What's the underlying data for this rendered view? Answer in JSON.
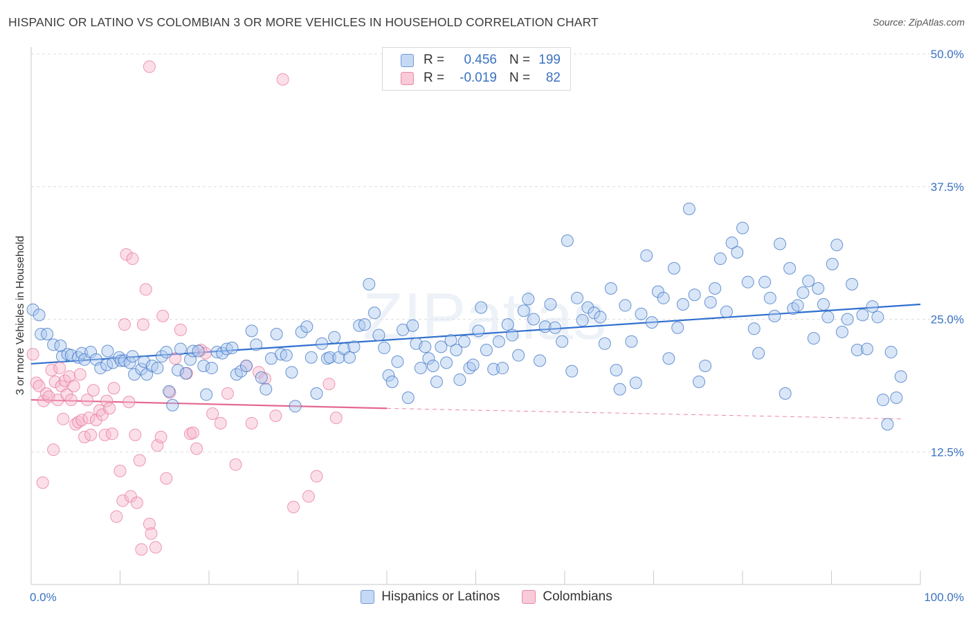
{
  "title": "HISPANIC OR LATINO VS COLOMBIAN 3 OR MORE VEHICLES IN HOUSEHOLD CORRELATION CHART",
  "source": "Source: ZipAtlas.com",
  "watermark": "ZIPatlas",
  "colors": {
    "blue": "#3a72c2",
    "blue_fill": "#aac8ef",
    "blue_line": "#2f6fcf",
    "pink": "#e8779b",
    "pink_fill": "#f6b7cb",
    "pink_line": "#e4698f",
    "grid": "#dcdcdc",
    "axis_text": "#3a72c2"
  },
  "legend": {
    "rows": [
      {
        "r_label": "R =",
        "r_value": "0.456",
        "n_label": "N =",
        "n_value": "199"
      },
      {
        "r_label": "R =",
        "r_value": "-0.019",
        "n_label": "N =",
        "n_value": "82"
      }
    ]
  },
  "bottom_legend": [
    "Hispanics or Latinos",
    "Colombians"
  ],
  "chart_data": {
    "type": "scatter",
    "ylabel": "3 or more Vehicles in Household",
    "xlim": [
      0,
      100
    ],
    "ylim": [
      0,
      50
    ],
    "x_tick_labels": [
      "0.0%",
      "100.0%"
    ],
    "y_ticks": [
      12.5,
      25.0,
      37.5,
      50.0
    ],
    "y_tick_labels": [
      "12.5%",
      "25.0%",
      "37.5%",
      "50.0%"
    ],
    "grid": true,
    "legend_position": "top-center",
    "series": [
      {
        "name": "Hispanics or Latinos",
        "r": 0.456,
        "n": 199,
        "trend": {
          "x": [
            0,
            100
          ],
          "y": [
            20.8,
            26.4
          ]
        },
        "points": [
          [
            0.2,
            25.9
          ],
          [
            0.9,
            25.4
          ],
          [
            1.1,
            23.6
          ],
          [
            1.8,
            23.6
          ],
          [
            2.5,
            22.6
          ],
          [
            3.3,
            22.5
          ],
          [
            3.5,
            21.5
          ],
          [
            4.1,
            21.7
          ],
          [
            4.5,
            21.6
          ],
          [
            5.3,
            21.4
          ],
          [
            5.7,
            21.8
          ],
          [
            6.0,
            21.2
          ],
          [
            6.7,
            21.9
          ],
          [
            7.3,
            21.2
          ],
          [
            7.8,
            20.4
          ],
          [
            8.5,
            20.7
          ],
          [
            8.6,
            22.0
          ],
          [
            9.2,
            20.9
          ],
          [
            9.9,
            21.4
          ],
          [
            10.1,
            21.1
          ],
          [
            10.5,
            21.1
          ],
          [
            11.1,
            20.9
          ],
          [
            11.4,
            21.5
          ],
          [
            11.6,
            19.8
          ],
          [
            12.4,
            20.3
          ],
          [
            12.7,
            21.0
          ],
          [
            13.0,
            19.8
          ],
          [
            13.6,
            20.6
          ],
          [
            14.2,
            20.4
          ],
          [
            14.7,
            21.5
          ],
          [
            15.2,
            21.9
          ],
          [
            15.5,
            18.2
          ],
          [
            15.9,
            16.9
          ],
          [
            16.5,
            20.2
          ],
          [
            16.8,
            22.2
          ],
          [
            17.4,
            19.9
          ],
          [
            17.9,
            21.2
          ],
          [
            18.2,
            22.0
          ],
          [
            18.8,
            22.0
          ],
          [
            19.4,
            20.6
          ],
          [
            19.7,
            17.9
          ],
          [
            20.3,
            20.4
          ],
          [
            20.9,
            21.9
          ],
          [
            21.5,
            21.8
          ],
          [
            22.0,
            22.2
          ],
          [
            22.6,
            22.3
          ],
          [
            23.1,
            19.8
          ],
          [
            23.6,
            20.1
          ],
          [
            24.2,
            20.6
          ],
          [
            24.8,
            23.9
          ],
          [
            25.3,
            22.6
          ],
          [
            25.9,
            19.5
          ],
          [
            26.4,
            18.4
          ],
          [
            27.0,
            21.3
          ],
          [
            27.6,
            23.6
          ],
          [
            28.1,
            21.7
          ],
          [
            28.7,
            21.6
          ],
          [
            29.3,
            20.0
          ],
          [
            29.7,
            16.8
          ],
          [
            30.4,
            23.8
          ],
          [
            31.0,
            24.3
          ],
          [
            31.5,
            21.4
          ],
          [
            32.1,
            18.0
          ],
          [
            32.7,
            22.7
          ],
          [
            33.3,
            21.3
          ],
          [
            33.6,
            21.4
          ],
          [
            34.1,
            23.3
          ],
          [
            34.6,
            21.4
          ],
          [
            35.2,
            22.2
          ],
          [
            35.8,
            21.4
          ],
          [
            36.3,
            22.4
          ],
          [
            36.9,
            24.4
          ],
          [
            37.5,
            24.5
          ],
          [
            38.0,
            28.3
          ],
          [
            38.6,
            25.6
          ],
          [
            39.1,
            23.5
          ],
          [
            39.7,
            22.3
          ],
          [
            40.2,
            19.7
          ],
          [
            40.6,
            19.1
          ],
          [
            41.2,
            21.0
          ],
          [
            41.8,
            24.0
          ],
          [
            42.4,
            17.6
          ],
          [
            42.9,
            24.4
          ],
          [
            43.3,
            22.7
          ],
          [
            43.8,
            20.4
          ],
          [
            44.3,
            22.4
          ],
          [
            44.7,
            21.3
          ],
          [
            45.2,
            20.6
          ],
          [
            45.6,
            19.1
          ],
          [
            46.1,
            22.4
          ],
          [
            46.7,
            20.9
          ],
          [
            47.2,
            23.0
          ],
          [
            47.8,
            22.1
          ],
          [
            48.2,
            19.3
          ],
          [
            48.7,
            22.9
          ],
          [
            49.3,
            20.4
          ],
          [
            49.7,
            20.7
          ],
          [
            50.3,
            23.9
          ],
          [
            50.6,
            26.1
          ],
          [
            51.2,
            22.1
          ],
          [
            52.0,
            20.3
          ],
          [
            52.6,
            22.9
          ],
          [
            53.0,
            20.4
          ],
          [
            53.6,
            24.5
          ],
          [
            54.1,
            23.5
          ],
          [
            54.8,
            21.6
          ],
          [
            55.4,
            25.8
          ],
          [
            55.9,
            26.9
          ],
          [
            56.5,
            25.0
          ],
          [
            57.2,
            21.1
          ],
          [
            57.8,
            24.3
          ],
          [
            58.4,
            26.4
          ],
          [
            58.9,
            24.2
          ],
          [
            59.7,
            22.9
          ],
          [
            60.3,
            32.4
          ],
          [
            60.8,
            20.1
          ],
          [
            61.4,
            27.0
          ],
          [
            62.0,
            24.9
          ],
          [
            62.6,
            26.1
          ],
          [
            63.3,
            25.6
          ],
          [
            64.0,
            25.2
          ],
          [
            64.5,
            22.7
          ],
          [
            65.2,
            27.9
          ],
          [
            65.8,
            20.2
          ],
          [
            66.2,
            18.4
          ],
          [
            66.8,
            26.3
          ],
          [
            67.5,
            22.9
          ],
          [
            68.0,
            19.0
          ],
          [
            68.6,
            25.5
          ],
          [
            69.2,
            31.0
          ],
          [
            69.8,
            24.7
          ],
          [
            70.5,
            27.6
          ],
          [
            71.1,
            27.0
          ],
          [
            71.7,
            21.3
          ],
          [
            72.3,
            29.8
          ],
          [
            72.7,
            24.2
          ],
          [
            73.3,
            26.4
          ],
          [
            74.0,
            35.4
          ],
          [
            74.6,
            27.3
          ],
          [
            75.1,
            19.1
          ],
          [
            75.8,
            20.6
          ],
          [
            76.4,
            26.6
          ],
          [
            76.9,
            27.9
          ],
          [
            77.5,
            30.7
          ],
          [
            78.2,
            25.7
          ],
          [
            78.8,
            32.2
          ],
          [
            79.4,
            31.3
          ],
          [
            80.0,
            33.6
          ],
          [
            80.6,
            28.5
          ],
          [
            81.3,
            24.1
          ],
          [
            81.8,
            21.8
          ],
          [
            82.5,
            28.5
          ],
          [
            83.1,
            27.0
          ],
          [
            83.6,
            25.3
          ],
          [
            84.2,
            32.1
          ],
          [
            84.8,
            18.0
          ],
          [
            85.3,
            29.8
          ],
          [
            85.7,
            26.0
          ],
          [
            86.2,
            26.3
          ],
          [
            86.8,
            27.5
          ],
          [
            87.4,
            28.6
          ],
          [
            88.0,
            23.2
          ],
          [
            88.5,
            27.9
          ],
          [
            89.1,
            26.4
          ],
          [
            89.6,
            25.2
          ],
          [
            90.1,
            30.2
          ],
          [
            90.6,
            32.0
          ],
          [
            91.2,
            23.8
          ],
          [
            91.8,
            25.0
          ],
          [
            92.3,
            28.3
          ],
          [
            92.9,
            22.1
          ],
          [
            93.5,
            25.4
          ],
          [
            94.0,
            22.2
          ],
          [
            94.6,
            26.2
          ],
          [
            95.2,
            25.2
          ],
          [
            95.8,
            17.4
          ],
          [
            96.3,
            15.1
          ],
          [
            96.7,
            21.9
          ],
          [
            97.3,
            17.6
          ],
          [
            97.8,
            19.6
          ]
        ]
      },
      {
        "name": "Colombians",
        "r": -0.019,
        "n": 82,
        "trend": {
          "x": [
            0,
            40
          ],
          "y": [
            17.4,
            16.6
          ]
        },
        "trend_dashed": {
          "x": [
            40,
            98
          ],
          "y": [
            16.6,
            15.6
          ]
        },
        "points": [
          [
            0.2,
            21.7
          ],
          [
            0.6,
            19.0
          ],
          [
            0.9,
            18.7
          ],
          [
            1.3,
            9.6
          ],
          [
            1.4,
            17.3
          ],
          [
            1.7,
            18.0
          ],
          [
            2.0,
            17.7
          ],
          [
            2.3,
            20.2
          ],
          [
            2.5,
            12.7
          ],
          [
            2.7,
            19.1
          ],
          [
            3.0,
            17.4
          ],
          [
            3.2,
            20.4
          ],
          [
            3.4,
            18.7
          ],
          [
            3.6,
            15.6
          ],
          [
            3.8,
            19.2
          ],
          [
            4.0,
            17.9
          ],
          [
            4.3,
            19.6
          ],
          [
            4.5,
            17.4
          ],
          [
            4.8,
            18.7
          ],
          [
            5.0,
            15.1
          ],
          [
            5.3,
            15.3
          ],
          [
            5.5,
            19.8
          ],
          [
            5.7,
            15.5
          ],
          [
            6.0,
            13.9
          ],
          [
            6.3,
            17.4
          ],
          [
            6.5,
            15.7
          ],
          [
            6.7,
            14.1
          ],
          [
            7.0,
            18.3
          ],
          [
            7.3,
            15.5
          ],
          [
            7.7,
            16.4
          ],
          [
            8.0,
            16.0
          ],
          [
            8.3,
            14.1
          ],
          [
            8.5,
            17.3
          ],
          [
            8.8,
            16.6
          ],
          [
            9.1,
            14.2
          ],
          [
            9.3,
            18.5
          ],
          [
            9.6,
            6.4
          ],
          [
            10.0,
            10.7
          ],
          [
            10.3,
            7.9
          ],
          [
            10.5,
            24.5
          ],
          [
            10.7,
            31.1
          ],
          [
            11.0,
            17.2
          ],
          [
            11.2,
            8.3
          ],
          [
            11.4,
            30.7
          ],
          [
            11.7,
            14.1
          ],
          [
            11.9,
            7.7
          ],
          [
            12.2,
            11.7
          ],
          [
            12.4,
            3.3
          ],
          [
            12.6,
            24.5
          ],
          [
            12.9,
            27.8
          ],
          [
            13.3,
            5.7
          ],
          [
            13.5,
            4.8
          ],
          [
            14.0,
            3.5
          ],
          [
            14.2,
            13.1
          ],
          [
            14.6,
            13.9
          ],
          [
            14.8,
            25.3
          ],
          [
            15.2,
            10.0
          ],
          [
            15.6,
            18.1
          ],
          [
            16.2,
            21.3
          ],
          [
            16.8,
            24.0
          ],
          [
            17.5,
            19.9
          ],
          [
            17.9,
            14.2
          ],
          [
            18.2,
            14.3
          ],
          [
            18.6,
            12.8
          ],
          [
            19.1,
            22.1
          ],
          [
            19.6,
            21.8
          ],
          [
            20.4,
            16.1
          ],
          [
            21.3,
            15.2
          ],
          [
            22.1,
            18.0
          ],
          [
            23.0,
            11.3
          ],
          [
            24.2,
            20.6
          ],
          [
            24.8,
            15.2
          ],
          [
            25.6,
            20.0
          ],
          [
            26.3,
            19.4
          ],
          [
            27.5,
            15.9
          ],
          [
            28.3,
            47.6
          ],
          [
            29.5,
            7.3
          ],
          [
            31.2,
            8.3
          ],
          [
            32.1,
            10.2
          ],
          [
            33.5,
            18.9
          ],
          [
            34.3,
            15.7
          ],
          [
            13.3,
            48.8
          ]
        ]
      }
    ]
  }
}
